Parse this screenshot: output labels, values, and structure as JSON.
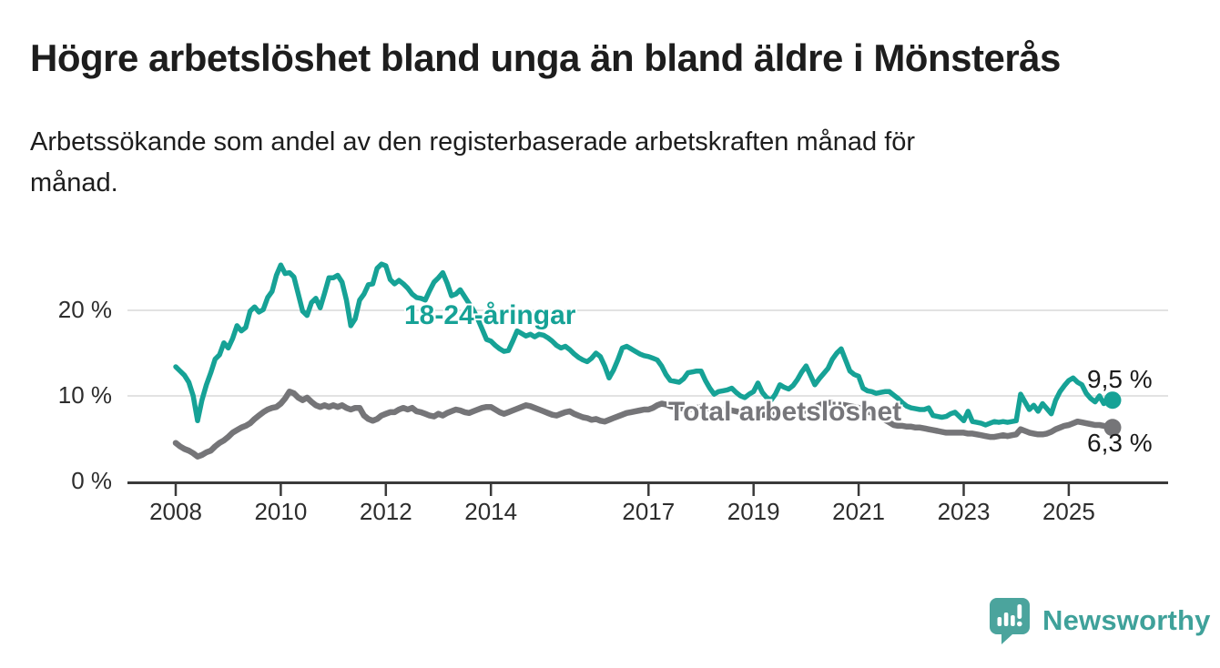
{
  "header": {
    "title": "Högre arbetslöshet bland unga än bland äldre i Mönsterås",
    "subtitle_lines": [
      "Arbetssökande som andel av den registerbaserade arbetskraften månad för",
      "månad."
    ]
  },
  "chart_data": {
    "type": "line",
    "x_period": {
      "start": "2008-01",
      "end": "2025-11",
      "frequency": "monthly"
    },
    "ylim": [
      0,
      27
    ],
    "grid": "horizontal",
    "yticks": [
      {
        "value": 0,
        "label": "0 %"
      },
      {
        "value": 10,
        "label": "10 %"
      },
      {
        "value": 20,
        "label": "20 %"
      }
    ],
    "xticks": [
      {
        "year": 2008,
        "label": "2008"
      },
      {
        "year": 2010,
        "label": "2010"
      },
      {
        "year": 2012,
        "label": "2012"
      },
      {
        "year": 2014,
        "label": "2014"
      },
      {
        "year": 2017,
        "label": "2017"
      },
      {
        "year": 2019,
        "label": "2019"
      },
      {
        "year": 2021,
        "label": "2021"
      },
      {
        "year": 2023,
        "label": "2023"
      },
      {
        "year": 2025,
        "label": "2025"
      }
    ],
    "series": [
      {
        "name": "18-24-åringar",
        "color": "#16a296",
        "end_label": "9,5 %",
        "end_value": 9.5,
        "values": [
          13.4,
          12.9,
          12.4,
          11.6,
          10.0,
          7.1,
          9.5,
          11.3,
          12.7,
          14.3,
          14.8,
          16.2,
          15.6,
          16.7,
          18.2,
          17.6,
          18.0,
          19.9,
          20.4,
          19.8,
          20.1,
          21.5,
          22.2,
          24.1,
          25.3,
          24.3,
          24.4,
          23.9,
          21.9,
          19.9,
          19.4,
          20.9,
          21.4,
          20.3,
          22.0,
          23.8,
          23.8,
          24.1,
          23.3,
          21.2,
          18.2,
          19.0,
          21.2,
          21.9,
          23.0,
          23.1,
          24.9,
          25.4,
          25.2,
          23.6,
          23.1,
          23.5,
          23.1,
          22.6,
          21.9,
          21.5,
          21.4,
          21.2,
          22.3,
          23.3,
          23.8,
          24.4,
          23.2,
          21.7,
          21.9,
          22.4,
          21.6,
          20.8,
          20.0,
          19.0,
          17.8,
          16.6,
          16.4,
          15.9,
          15.5,
          15.2,
          15.3,
          16.4,
          17.6,
          17.3,
          17.0,
          17.2,
          16.9,
          17.2,
          17.1,
          16.8,
          16.4,
          15.9,
          15.6,
          15.8,
          15.4,
          14.9,
          14.5,
          14.2,
          14.0,
          14.4,
          15.0,
          14.6,
          13.5,
          12.1,
          13.0,
          14.2,
          15.6,
          15.8,
          15.5,
          15.2,
          14.9,
          14.7,
          14.6,
          14.4,
          14.2,
          13.5,
          12.5,
          11.8,
          11.7,
          11.6,
          12.0,
          12.7,
          12.8,
          12.9,
          12.9,
          11.8,
          10.9,
          10.2,
          10.5,
          10.6,
          10.7,
          10.9,
          10.4,
          10.0,
          9.8,
          10.2,
          10.5,
          11.5,
          10.4,
          9.8,
          9.5,
          10.2,
          11.3,
          11.0,
          10.8,
          11.2,
          11.9,
          12.8,
          13.5,
          12.4,
          11.3,
          12.0,
          12.6,
          13.2,
          14.3,
          15.0,
          15.5,
          14.2,
          12.9,
          12.5,
          12.3,
          10.9,
          10.6,
          10.5,
          10.3,
          10.4,
          10.5,
          10.5,
          10.1,
          9.7,
          9.2,
          8.8,
          8.6,
          8.5,
          8.4,
          8.4,
          8.6,
          7.7,
          7.6,
          7.5,
          7.6,
          7.9,
          8.1,
          7.6,
          7.1,
          8.2,
          7.0,
          6.9,
          6.8,
          6.6,
          6.8,
          7.0,
          6.9,
          7.0,
          6.9,
          7.0,
          7.1,
          10.2,
          9.3,
          8.4,
          8.9,
          8.2,
          9.1,
          8.5,
          7.9,
          9.5,
          10.5,
          11.2,
          11.8,
          12.1,
          11.6,
          11.3,
          10.3,
          9.7,
          9.3,
          10.0,
          9.1,
          9.8,
          9.5
        ]
      },
      {
        "name": "Total arbetslöshet",
        "color": "#757578",
        "end_label": "6,3 %",
        "end_value": 6.3,
        "values": [
          4.5,
          4.1,
          3.8,
          3.6,
          3.3,
          2.9,
          3.1,
          3.4,
          3.6,
          4.1,
          4.5,
          4.8,
          5.2,
          5.7,
          6.0,
          6.3,
          6.5,
          6.8,
          7.3,
          7.7,
          8.1,
          8.4,
          8.6,
          8.7,
          9.1,
          9.7,
          10.5,
          10.3,
          9.8,
          9.5,
          9.8,
          9.3,
          8.9,
          8.7,
          8.9,
          8.7,
          8.9,
          8.7,
          8.9,
          8.6,
          8.4,
          8.6,
          8.6,
          7.7,
          7.3,
          7.1,
          7.3,
          7.7,
          7.9,
          8.1,
          8.1,
          8.4,
          8.6,
          8.4,
          8.6,
          8.2,
          8.1,
          7.9,
          7.7,
          7.6,
          7.9,
          7.7,
          8.0,
          8.2,
          8.4,
          8.3,
          8.1,
          8.0,
          8.2,
          8.4,
          8.6,
          8.7,
          8.7,
          8.4,
          8.1,
          7.9,
          8.1,
          8.3,
          8.5,
          8.7,
          8.9,
          8.8,
          8.6,
          8.4,
          8.2,
          8.0,
          7.8,
          7.7,
          7.9,
          8.1,
          8.2,
          7.9,
          7.7,
          7.5,
          7.4,
          7.2,
          7.3,
          7.1,
          7.0,
          7.2,
          7.4,
          7.6,
          7.8,
          8.0,
          8.1,
          8.2,
          8.3,
          8.4,
          8.4,
          8.6,
          8.9,
          9.1,
          9.0,
          8.8,
          8.7,
          8.6,
          8.5,
          8.4,
          8.5,
          8.6,
          8.7,
          8.6,
          8.5,
          8.4,
          8.3,
          8.3,
          8.4,
          8.3,
          8.2,
          8.1,
          8.0,
          8.0,
          8.0,
          7.9,
          7.8,
          7.8,
          7.9,
          8.0,
          8.1,
          8.1,
          8.0,
          8.0,
          8.1,
          8.2,
          8.3,
          8.4,
          8.6,
          8.9,
          9.1,
          9.2,
          9.2,
          9.1,
          9.0,
          8.9,
          8.8,
          8.7,
          8.6,
          8.4,
          8.2,
          8.0,
          7.8,
          7.5,
          7.2,
          6.9,
          6.6,
          6.5,
          6.5,
          6.4,
          6.4,
          6.3,
          6.3,
          6.2,
          6.1,
          6.0,
          5.9,
          5.8,
          5.7,
          5.7,
          5.7,
          5.7,
          5.7,
          5.6,
          5.6,
          5.5,
          5.4,
          5.3,
          5.2,
          5.2,
          5.3,
          5.4,
          5.3,
          5.4,
          5.5,
          6.1,
          5.9,
          5.7,
          5.6,
          5.5,
          5.5,
          5.6,
          5.8,
          6.1,
          6.3,
          6.5,
          6.6,
          6.8,
          7.0,
          6.9,
          6.8,
          6.7,
          6.6,
          6.6,
          6.5,
          6.4,
          6.3
        ]
      }
    ]
  },
  "footer": {
    "brand": "Newsworthy"
  },
  "colors": {
    "accent_teal": "#16a296",
    "series_gray": "#757578",
    "grid": "#d8d8d8",
    "axis": "#3a3a3a",
    "text": "#1d1d1d",
    "logo": "#3fa19a"
  }
}
